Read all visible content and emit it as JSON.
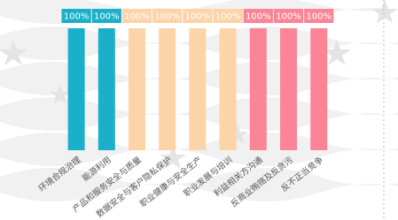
{
  "chart_data": {
    "type": "bar",
    "categories": [
      "环境合规治理",
      "能源利用",
      "产品和服务安全与质量",
      "数据安全与客户隐私保护",
      "职业健康与安全生产",
      "职业发展与培训",
      "利益相关方沟通",
      "反商业贿赂及反贪污",
      "反不正当竞争"
    ],
    "values": [
      100,
      100,
      100,
      100,
      100,
      100,
      100,
      100,
      100
    ],
    "value_labels": [
      "100%",
      "100%",
      "100%",
      "100%",
      "100%",
      "100%",
      "100%",
      "100%",
      "100%"
    ],
    "colors": [
      "#1ab0c9",
      "#1ab0c9",
      "#fdd3a8",
      "#fdd3a8",
      "#fdd3a8",
      "#fdd3a8",
      "#fb8597",
      "#fb8597",
      "#fb8597"
    ],
    "ylim": [
      0,
      100
    ]
  }
}
